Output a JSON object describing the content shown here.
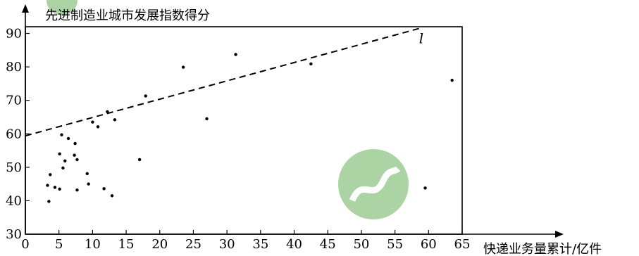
{
  "chart_data": {
    "type": "scatter",
    "title": "",
    "ylabel": "先进制造业城市发展指数得分",
    "xlabel": "快递业务量累计/亿件",
    "xlim": [
      0,
      65
    ],
    "ylim": [
      30,
      92
    ],
    "x_ticks": [
      0,
      5,
      10,
      15,
      20,
      25,
      30,
      35,
      40,
      45,
      50,
      55,
      60,
      65
    ],
    "y_ticks": [
      30,
      40,
      50,
      60,
      70,
      80,
      90
    ],
    "grid": false,
    "points": [
      {
        "x": 3.3,
        "y": 44.6
      },
      {
        "x": 3.5,
        "y": 39.8
      },
      {
        "x": 3.7,
        "y": 47.8
      },
      {
        "x": 4.4,
        "y": 44.0
      },
      {
        "x": 5.1,
        "y": 43.5
      },
      {
        "x": 5.1,
        "y": 54.0
      },
      {
        "x": 5.4,
        "y": 59.7
      },
      {
        "x": 5.6,
        "y": 49.8
      },
      {
        "x": 5.9,
        "y": 51.9
      },
      {
        "x": 6.4,
        "y": 58.6
      },
      {
        "x": 7.3,
        "y": 53.6
      },
      {
        "x": 7.4,
        "y": 57.1
      },
      {
        "x": 7.7,
        "y": 52.3
      },
      {
        "x": 7.7,
        "y": 43.2
      },
      {
        "x": 9.2,
        "y": 48.1
      },
      {
        "x": 9.4,
        "y": 45.0
      },
      {
        "x": 10.0,
        "y": 63.5
      },
      {
        "x": 10.8,
        "y": 62.1
      },
      {
        "x": 11.7,
        "y": 43.6
      },
      {
        "x": 12.2,
        "y": 66.6
      },
      {
        "x": 12.9,
        "y": 41.5
      },
      {
        "x": 13.3,
        "y": 64.2
      },
      {
        "x": 17.0,
        "y": 52.3
      },
      {
        "x": 17.9,
        "y": 71.3
      },
      {
        "x": 23.5,
        "y": 79.9
      },
      {
        "x": 27.0,
        "y": 64.5
      },
      {
        "x": 31.3,
        "y": 83.7
      },
      {
        "x": 42.5,
        "y": 80.9
      },
      {
        "x": 59.5,
        "y": 43.8
      },
      {
        "x": 63.5,
        "y": 76.0
      }
    ],
    "regression_line": {
      "label": "l",
      "x": [
        0,
        59
      ],
      "y": [
        59.4,
        91.7
      ]
    }
  }
}
